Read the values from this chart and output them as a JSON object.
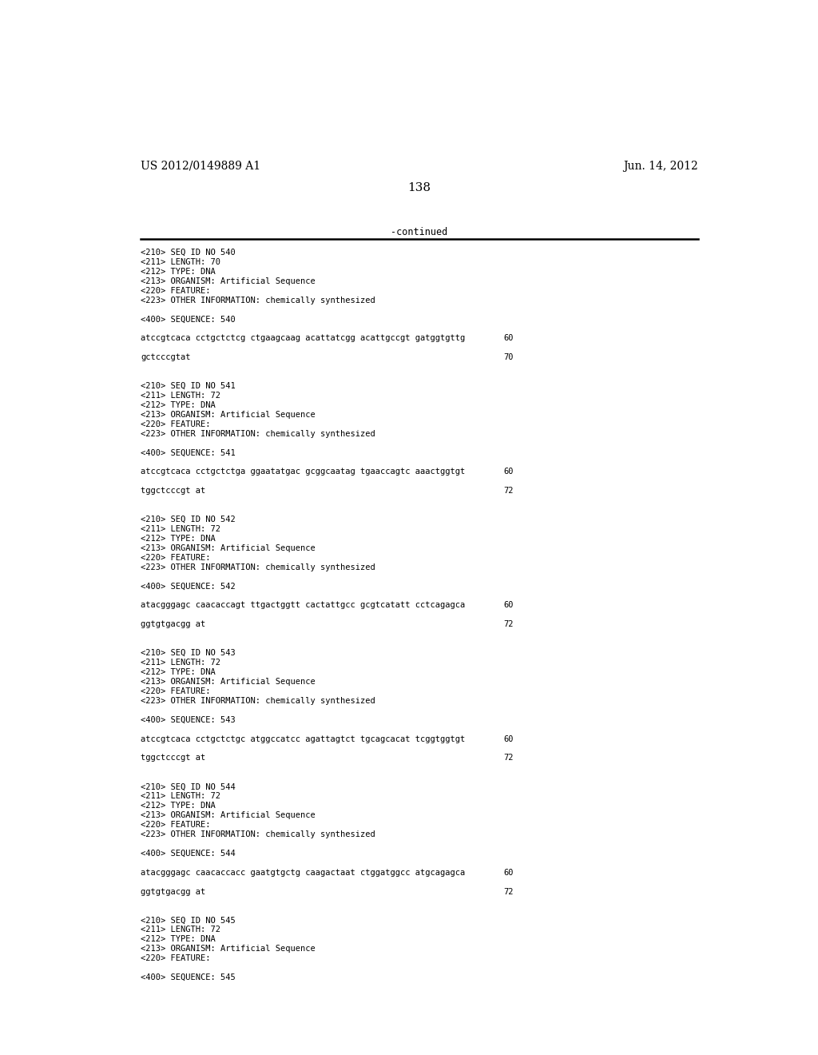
{
  "page_left": "US 2012/0149889 A1",
  "page_right": "Jun. 14, 2012",
  "page_number": "138",
  "continued_text": "-continued",
  "background_color": "#ffffff",
  "text_color": "#000000",
  "sequences": [
    {
      "seq_id": "540",
      "length": "70",
      "type": "DNA",
      "organism": "Artificial Sequence",
      "other_info": "chemically synthesized",
      "seq_line1": "atccgtcaca cctgctctcg ctgaagcaag acattatcgg acattgccgt gatggtgttg",
      "seq_line1_num": "60",
      "seq_line2": "gctcccgtat",
      "seq_line2_num": "70"
    },
    {
      "seq_id": "541",
      "length": "72",
      "type": "DNA",
      "organism": "Artificial Sequence",
      "other_info": "chemically synthesized",
      "seq_line1": "atccgtcaca cctgctctga ggaatatgac gcggcaatag tgaaccagtc aaactggtgt",
      "seq_line1_num": "60",
      "seq_line2": "tggctcccgt at",
      "seq_line2_num": "72"
    },
    {
      "seq_id": "542",
      "length": "72",
      "type": "DNA",
      "organism": "Artificial Sequence",
      "other_info": "chemically synthesized",
      "seq_line1": "atacgggagc caacaccagt ttgactggtt cactattgcc gcgtcatatt cctcagagca",
      "seq_line1_num": "60",
      "seq_line2": "ggtgtgacgg at",
      "seq_line2_num": "72"
    },
    {
      "seq_id": "543",
      "length": "72",
      "type": "DNA",
      "organism": "Artificial Sequence",
      "other_info": "chemically synthesized",
      "seq_line1": "atccgtcaca cctgctctgc atggccatcc agattagtct tgcagcacat tcggtggtgt",
      "seq_line1_num": "60",
      "seq_line2": "tggctcccgt at",
      "seq_line2_num": "72"
    },
    {
      "seq_id": "544",
      "length": "72",
      "type": "DNA",
      "organism": "Artificial Sequence",
      "other_info": "chemically synthesized",
      "seq_line1": "atacgggagc caacaccacc gaatgtgctg caagactaat ctggatggcc atgcagagca",
      "seq_line1_num": "60",
      "seq_line2": "ggtgtgacgg at",
      "seq_line2_num": "72"
    },
    {
      "seq_id": "545",
      "length": "72",
      "type": "DNA",
      "organism": "Artificial Sequence",
      "other_info": "",
      "seq_line1": "",
      "seq_line1_num": "",
      "seq_line2": "",
      "seq_line2_num": ""
    }
  ]
}
